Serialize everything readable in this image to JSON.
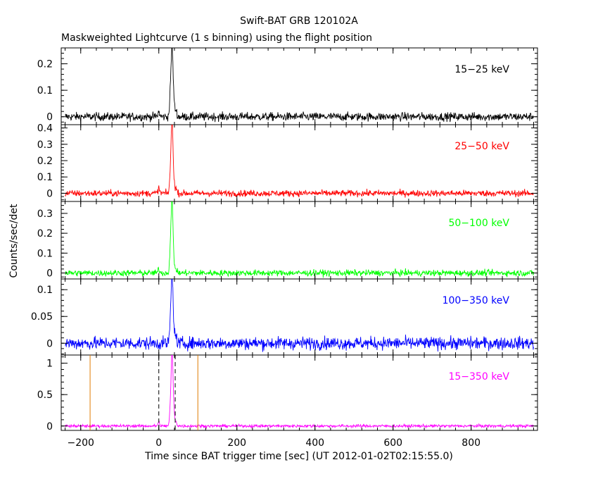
{
  "chart_data": {
    "type": "line",
    "title": "Swift-BAT GRB 120102A",
    "subtitle": "Maskweighted Lightcurve (1 s binning) using the flight position",
    "xlabel": "Time since BAT trigger time [sec] (UT 2012-01-02T02:15:55.0)",
    "ylabel": "Counts/sec/det",
    "xlim": [
      -250,
      970
    ],
    "xticks": [
      -200,
      0,
      200,
      400,
      600,
      800
    ],
    "data_range": [
      -240,
      960
    ],
    "marker_lines": [
      {
        "x": -176,
        "style": "solid",
        "color": "#e07b00"
      },
      {
        "x": 0,
        "style": "dashed",
        "color": "#000000"
      },
      {
        "x": 42,
        "style": "dashed",
        "color": "#000000"
      },
      {
        "x": 100,
        "style": "solid",
        "color": "#e07b00"
      }
    ],
    "panels": [
      {
        "label": "15−25 keV",
        "color": "#000000",
        "ylim": [
          -0.03,
          0.26
        ],
        "yticks": [
          0,
          0.1,
          0.2
        ],
        "ytick_labels": [
          "0",
          "0.1",
          "0.2"
        ],
        "noise": 0.008,
        "peaks": [
          {
            "t": 0,
            "v": 0.018
          },
          {
            "t": 30,
            "v": 0.09
          },
          {
            "t": 34,
            "v": 0.24
          },
          {
            "t": 38,
            "v": 0.06
          },
          {
            "t": 44,
            "v": 0.025
          }
        ]
      },
      {
        "label": "25−50 keV",
        "color": "#ff0000",
        "ylim": [
          -0.05,
          0.42
        ],
        "yticks": [
          0,
          0.1,
          0.2,
          0.3,
          0.4
        ],
        "ytick_labels": [
          "0",
          "0.1",
          "0.2",
          "0.3",
          "0.4"
        ],
        "noise": 0.01,
        "peaks": [
          {
            "t": 0,
            "v": 0.03
          },
          {
            "t": 30,
            "v": 0.13
          },
          {
            "t": 34,
            "v": 0.4
          },
          {
            "t": 38,
            "v": 0.08
          },
          {
            "t": 44,
            "v": 0.03
          }
        ]
      },
      {
        "label": "50−100 keV",
        "color": "#00ff00",
        "ylim": [
          -0.03,
          0.36
        ],
        "yticks": [
          0,
          0.1,
          0.2,
          0.3
        ],
        "ytick_labels": [
          "0",
          "0.1",
          "0.2",
          "0.3"
        ],
        "noise": 0.008,
        "peaks": [
          {
            "t": 0,
            "v": 0.02
          },
          {
            "t": 30,
            "v": 0.13
          },
          {
            "t": 34,
            "v": 0.33
          },
          {
            "t": 38,
            "v": 0.06
          },
          {
            "t": 44,
            "v": 0.02
          }
        ]
      },
      {
        "label": "100−350 keV",
        "color": "#0000ff",
        "ylim": [
          -0.022,
          0.12
        ],
        "yticks": [
          0,
          0.05,
          0.1
        ],
        "ytick_labels": [
          "0",
          "0.05",
          "0.1"
        ],
        "noise": 0.006,
        "peaks": [
          {
            "t": 30,
            "v": 0.04
          },
          {
            "t": 34,
            "v": 0.115
          },
          {
            "t": 38,
            "v": 0.03
          },
          {
            "t": 44,
            "v": 0.012
          }
        ]
      },
      {
        "label": "15−350 keV",
        "color": "#ff00ff",
        "ylim": [
          -0.07,
          1.13
        ],
        "yticks": [
          0,
          0.5,
          1
        ],
        "ytick_labels": [
          "0",
          "0.5",
          "1"
        ],
        "noise": 0.012,
        "peaks": [
          {
            "t": 0,
            "v": 0.06
          },
          {
            "t": 30,
            "v": 0.3
          },
          {
            "t": 34,
            "v": 1.1
          },
          {
            "t": 38,
            "v": 0.25
          },
          {
            "t": 44,
            "v": 0.07
          }
        ]
      }
    ]
  }
}
